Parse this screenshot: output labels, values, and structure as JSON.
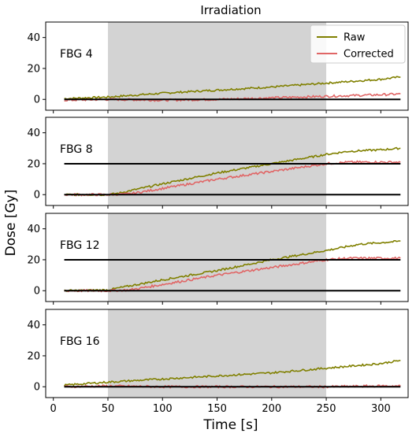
{
  "chart_data": {
    "type": "line",
    "title": "Irradiation",
    "xlabel": "Time [s]",
    "ylabel": "Dose [Gy]",
    "xlim": [
      -7,
      325
    ],
    "ylim": [
      -7,
      50
    ],
    "xticks": [
      0,
      50,
      100,
      150,
      200,
      250,
      300
    ],
    "yticks": [
      0,
      20,
      40
    ],
    "shaded_interval": [
      50,
      250
    ],
    "grid": false,
    "legend": {
      "position": "top-right",
      "entries": [
        "Raw",
        "Corrected"
      ]
    },
    "colors": {
      "Raw": "#808000",
      "Corrected": "#e06666",
      "reference": "#000000",
      "shade": "#d3d3d3"
    },
    "panels": [
      {
        "label": "FBG 4",
        "reference_lines": [
          0
        ],
        "series": [
          {
            "name": "Raw",
            "x": [
              10,
              50,
              100,
              150,
              200,
              250,
              300,
              318
            ],
            "y": [
              0.5,
              1.5,
              4,
              6,
              8,
              10.5,
              13,
              14.5
            ]
          },
          {
            "name": "Corrected",
            "x": [
              10,
              50,
              100,
              150,
              200,
              250,
              300,
              318
            ],
            "y": [
              -0.5,
              0,
              -0.5,
              0,
              1,
              2,
              3,
              3.5
            ]
          }
        ]
      },
      {
        "label": "FBG 8",
        "reference_lines": [
          0,
          20
        ],
        "series": [
          {
            "name": "Raw",
            "x": [
              10,
              50,
              60,
              100,
              150,
              200,
              250,
              270,
              300,
              318
            ],
            "y": [
              0,
              0,
              1,
              7,
              14,
              20,
              26,
              28,
              29,
              30
            ]
          },
          {
            "name": "Corrected",
            "x": [
              10,
              50,
              70,
              100,
              150,
              200,
              250,
              270,
              300,
              318
            ],
            "y": [
              0,
              0,
              0.5,
              4,
              10,
              15,
              20,
              21,
              21,
              21
            ]
          }
        ]
      },
      {
        "label": "FBG 12",
        "reference_lines": [
          0,
          20
        ],
        "series": [
          {
            "name": "Raw",
            "x": [
              10,
              50,
              100,
              150,
              200,
              250,
              280,
              318
            ],
            "y": [
              0,
              0.5,
              7,
              13,
              20,
              26,
              30,
              32
            ]
          },
          {
            "name": "Corrected",
            "x": [
              10,
              50,
              70,
              100,
              150,
              200,
              250,
              270,
              300,
              318
            ],
            "y": [
              0,
              0,
              0.5,
              4,
              10,
              15,
              20,
              21,
              21,
              21
            ]
          }
        ]
      },
      {
        "label": "FBG 16",
        "reference_lines": [
          0
        ],
        "series": [
          {
            "name": "Raw",
            "x": [
              10,
              50,
              100,
              150,
              200,
              250,
              300,
              318
            ],
            "y": [
              1,
              3,
              5,
              7,
              9,
              12,
              15,
              17
            ]
          },
          {
            "name": "Corrected",
            "x": [
              10,
              50,
              100,
              150,
              200,
              250,
              300,
              318
            ],
            "y": [
              0,
              0.5,
              0,
              0,
              0,
              0,
              0.5,
              0.5
            ]
          }
        ]
      }
    ]
  }
}
